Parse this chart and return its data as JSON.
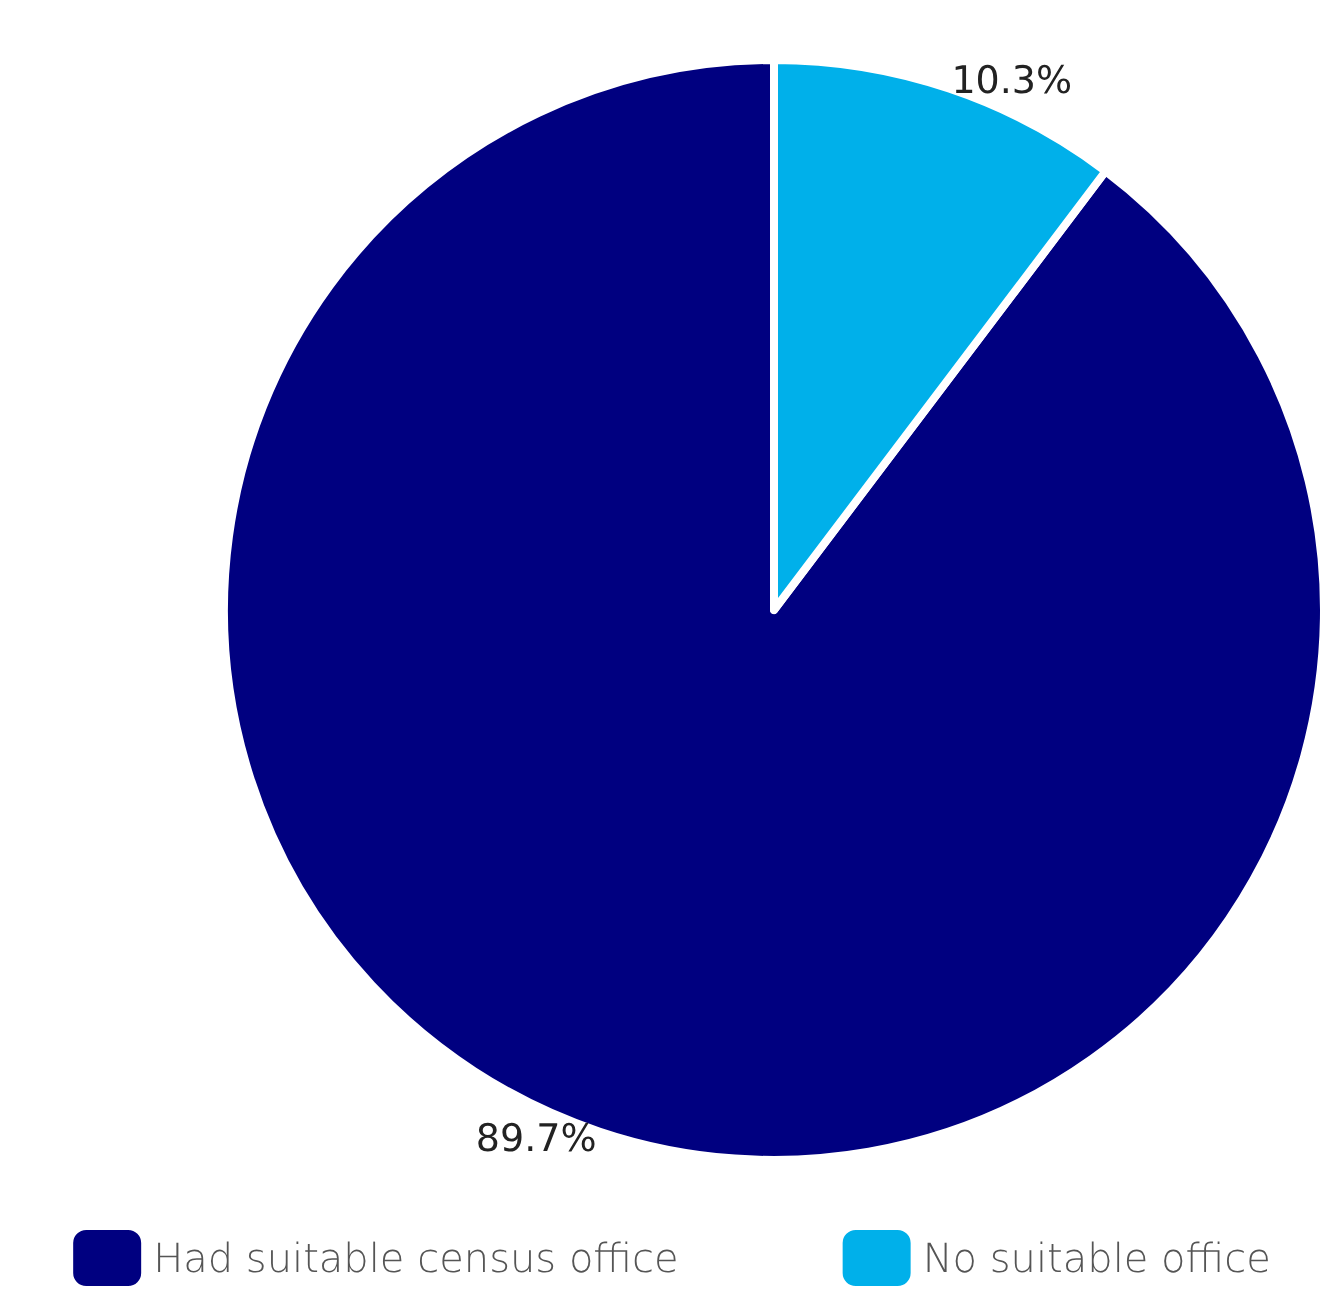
{
  "chart_data": {
    "type": "pie",
    "categories": [
      "Had suitable census office",
      "No suitable office"
    ],
    "values": [
      89.7,
      10.3
    ],
    "colors": [
      "#000080",
      "#00b0ea"
    ],
    "value_labels": [
      "89.7%",
      "10.3%"
    ],
    "legend": "bottom"
  }
}
